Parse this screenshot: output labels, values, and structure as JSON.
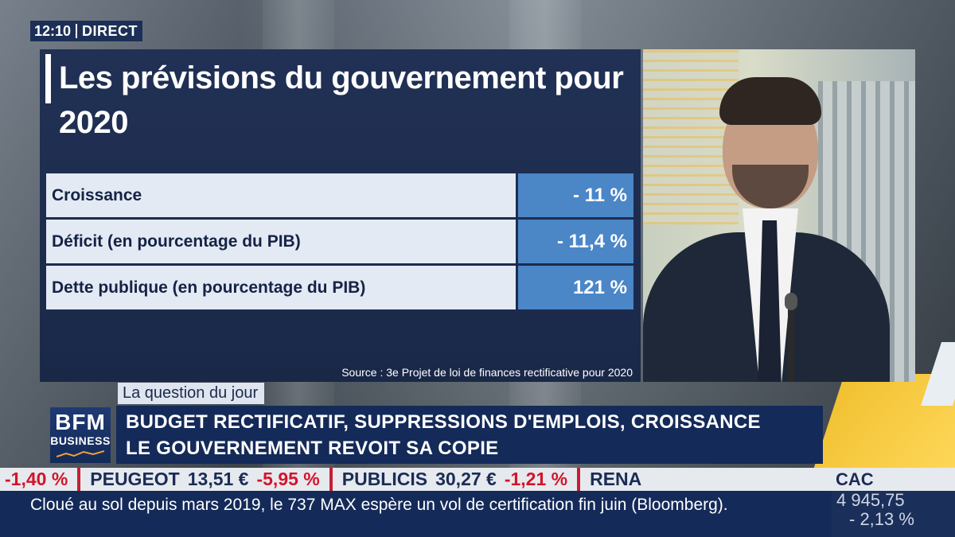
{
  "broadcast": {
    "time": "12:10",
    "live_label": "DIRECT"
  },
  "infographic": {
    "title": "Les prévisions du gouvernement pour 2020",
    "rows": [
      {
        "label": "Croissance",
        "value": "- 11 %"
      },
      {
        "label": "Déficit (en pourcentage du PIB)",
        "value": "- 11,4 %"
      },
      {
        "label": "Dette publique (en pourcentage du PIB)",
        "value": "121 %"
      }
    ],
    "source": "Source : 3e Projet de loi de finances rectificative pour 2020"
  },
  "lower_third": {
    "topic": "La question du jour",
    "headline_line1": "BUDGET RECTIFICATIF, SUPPRESSIONS D'EMPLOIS, CROISSANCE",
    "headline_line2": "LE GOUVERNEMENT REVOIT SA COPIE",
    "logo_line1": "BFM",
    "logo_line2": "BUSINESS"
  },
  "ticker": {
    "lead_change": "-1,40 %",
    "stocks": [
      {
        "name": "PEUGEOT",
        "price": "13,51 €",
        "change": "-5,95 %"
      },
      {
        "name": "PUBLICIS",
        "price": "30,27 €",
        "change": "-1,21 %"
      },
      {
        "name": "RENA",
        "price": "",
        "change": ""
      }
    ]
  },
  "index_box": {
    "name": "CAC",
    "value": "4 945,75",
    "change": "- 2,13 %"
  },
  "crawl": {
    "text": "Cloué au sol depuis mars 2019, le 737 MAX espère un vol de certification fin juin (Bloomberg)."
  },
  "colors": {
    "navy": "#142a59",
    "panel": "#213155",
    "value_blue": "#4b86c7",
    "ticker_red": "#d3142a"
  }
}
